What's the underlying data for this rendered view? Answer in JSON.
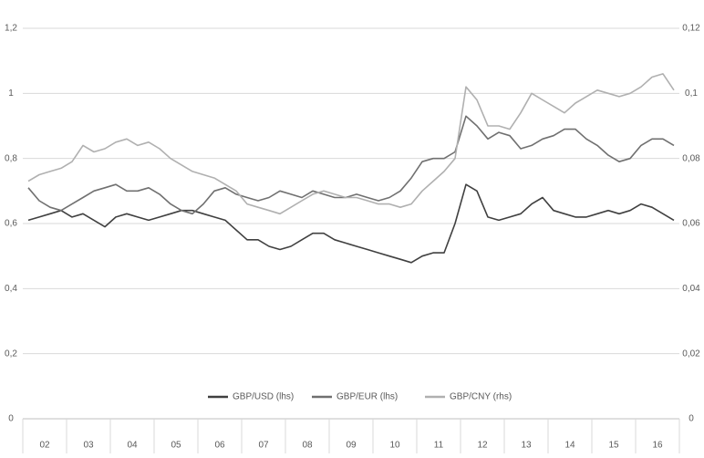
{
  "chart_data": {
    "type": "line",
    "categories": [
      "02",
      null,
      null,
      null,
      "03",
      null,
      null,
      null,
      "04",
      null,
      null,
      null,
      "05",
      null,
      null,
      null,
      "06",
      null,
      null,
      null,
      "07",
      null,
      null,
      null,
      "08",
      null,
      null,
      null,
      "09",
      null,
      null,
      null,
      "10",
      null,
      null,
      null,
      "11",
      null,
      null,
      null,
      "12",
      null,
      null,
      null,
      "13",
      null,
      null,
      null,
      "14",
      null,
      null,
      null,
      "15",
      null,
      null,
      null,
      "16",
      null,
      null,
      null
    ],
    "series": [
      {
        "name": "GBP/USD (lhs)",
        "color": "#404040",
        "values": [
          0.61,
          0.62,
          0.63,
          0.64,
          0.62,
          0.63,
          0.61,
          0.59,
          0.62,
          0.63,
          0.62,
          0.61,
          0.62,
          0.63,
          0.64,
          0.64,
          0.63,
          0.62,
          0.61,
          0.58,
          0.55,
          0.55,
          0.53,
          0.52,
          0.53,
          0.55,
          0.57,
          0.57,
          0.55,
          0.54,
          0.53,
          0.52,
          0.51,
          0.5,
          0.49,
          0.48,
          0.5,
          0.51,
          0.51,
          0.6,
          0.72,
          0.7,
          0.62,
          0.61,
          0.62,
          0.63,
          0.66,
          0.68,
          0.64,
          0.63,
          0.62,
          0.62,
          0.63,
          0.64,
          0.63,
          0.64,
          0.66,
          0.65,
          0.63,
          0.61
        ]
      },
      {
        "name": "GBP/EUR (lhs)",
        "color": "#707070",
        "values": [
          0.71,
          0.67,
          0.65,
          0.64,
          0.66,
          0.68,
          0.7,
          0.71,
          0.72,
          0.7,
          0.7,
          0.71,
          0.69,
          0.66,
          0.64,
          0.63,
          0.66,
          0.7,
          0.71,
          0.69,
          0.68,
          0.67,
          0.68,
          0.7,
          0.69,
          0.68,
          0.7,
          0.69,
          0.68,
          0.68,
          0.69,
          0.68,
          0.67,
          0.68,
          0.7,
          0.74,
          0.79,
          0.8,
          0.8,
          0.82,
          0.93,
          0.9,
          0.86,
          0.88,
          0.87,
          0.83,
          0.84,
          0.86,
          0.87,
          0.89,
          0.89,
          0.86,
          0.84,
          0.81,
          0.79,
          0.8,
          0.84,
          0.86,
          0.86,
          0.84
        ]
      },
      {
        "name": "GBP/CNY (rhs)",
        "color": "#b0b0b0",
        "axis": "y2",
        "values": [
          0.073,
          0.075,
          0.076,
          0.077,
          0.079,
          0.084,
          0.082,
          0.083,
          0.085,
          0.086,
          0.084,
          0.085,
          0.083,
          0.08,
          0.078,
          0.076,
          0.075,
          0.074,
          0.072,
          0.07,
          0.066,
          0.065,
          0.064,
          0.063,
          0.065,
          0.067,
          0.069,
          0.07,
          0.069,
          0.068,
          0.068,
          0.067,
          0.066,
          0.066,
          0.065,
          0.066,
          0.07,
          0.073,
          0.076,
          0.08,
          0.102,
          0.098,
          0.09,
          0.09,
          0.089,
          0.094,
          0.1,
          0.098,
          0.096,
          0.094,
          0.097,
          0.099,
          0.101,
          0.1,
          0.099,
          0.1,
          0.102,
          0.105,
          0.106,
          0.101
        ]
      }
    ],
    "ylim": [
      0,
      1.2
    ],
    "yticks": [
      0,
      {
        "value": 0.2,
        "label": "0,2"
      },
      {
        "value": 0.4,
        "label": "0,4"
      },
      {
        "value": 0.6,
        "label": "0,6"
      },
      {
        "value": 0.8,
        "label": "0,8"
      },
      1,
      {
        "value": 1.2,
        "label": "1,2"
      }
    ],
    "y2lim": [
      0,
      0.12
    ],
    "y2ticks": [
      0,
      {
        "value": 0.02,
        "label": "0,02"
      },
      {
        "value": 0.04,
        "label": "0,04"
      },
      {
        "value": 0.06,
        "label": "0,06"
      },
      {
        "value": 0.08,
        "label": "0,08"
      },
      {
        "value": 0.1,
        "label": "0,1"
      },
      {
        "value": 0.12,
        "label": "0,12"
      }
    ],
    "grid": true,
    "legend": "bottom"
  }
}
